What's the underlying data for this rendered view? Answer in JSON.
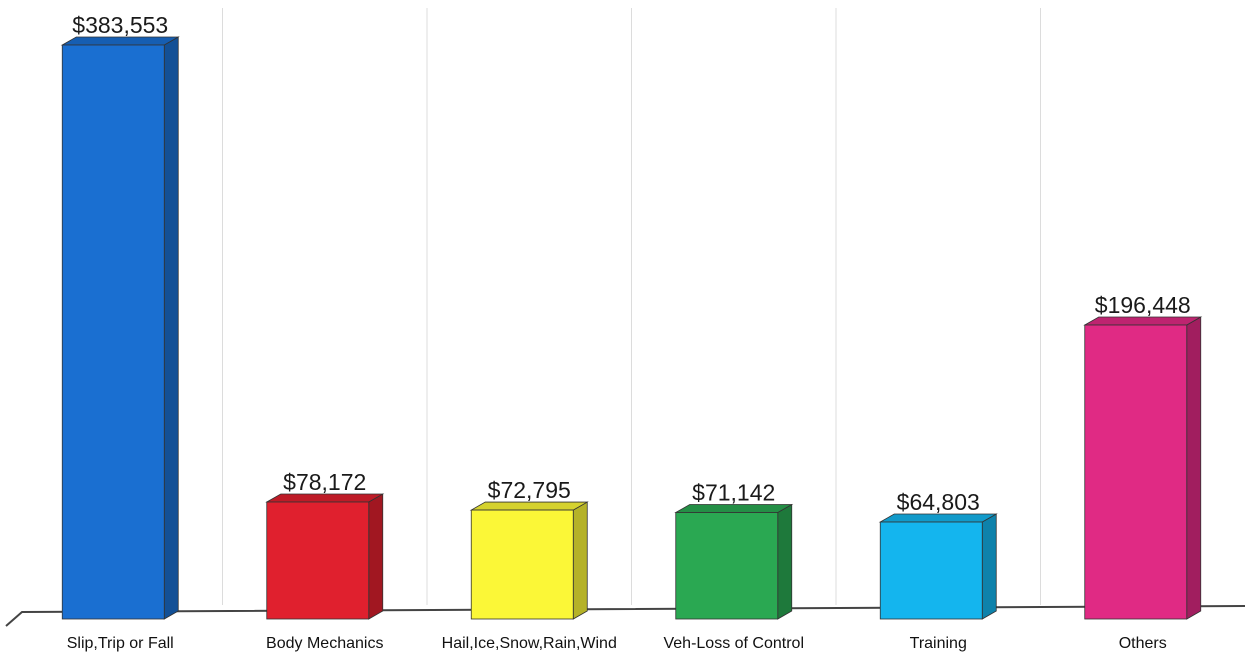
{
  "chart_data": {
    "type": "bar",
    "style": "3d",
    "categories": [
      "Slip,Trip or Fall",
      "Body Mechanics",
      "Hail,Ice,Snow,Rain,Wind",
      "Veh-Loss of Control",
      "Training",
      "Others"
    ],
    "values": [
      383553,
      78172,
      72795,
      71142,
      64803,
      196448
    ],
    "value_labels": [
      "$383,553",
      "$78,172",
      "$72,795",
      "$71,142",
      "$64,803",
      "$196,448"
    ],
    "colors": [
      "#1a6fd1",
      "#e0202e",
      "#fbf737",
      "#2aa852",
      "#14b5ee",
      "#e02a84"
    ],
    "ylim": [
      0,
      383553
    ],
    "grid": "vertical",
    "legend": "none"
  }
}
